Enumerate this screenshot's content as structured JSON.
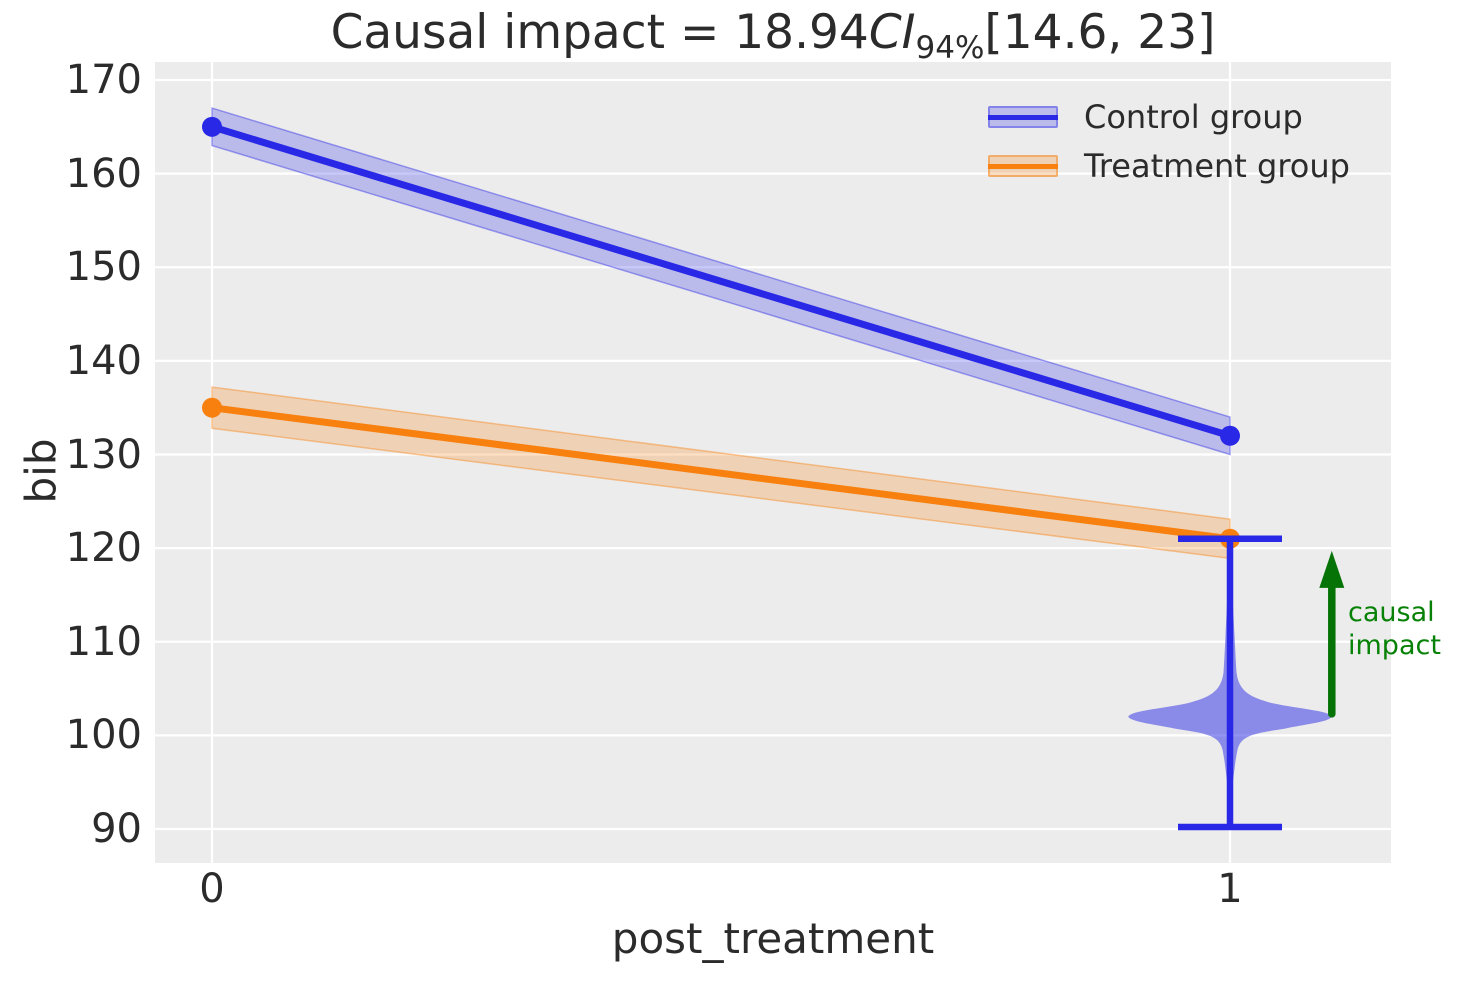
{
  "figure": {
    "title": {
      "prefix": "Causal impact = 18.94",
      "ci_label": "CI",
      "ci_subscript": "94%",
      "interval": "[14.6, 23]"
    }
  },
  "axes": {
    "x_label": "post_treatment",
    "y_label": "bib",
    "x_tick_labels": [
      "0",
      "1"
    ],
    "y_tick_labels": [
      "90",
      "100",
      "110",
      "120",
      "130",
      "140",
      "150",
      "160",
      "170"
    ]
  },
  "legend": {
    "items": [
      {
        "label": "Control group",
        "color": "#2828e6"
      },
      {
        "label": "Treatment group",
        "color": "#f7800f"
      }
    ]
  },
  "annotation": {
    "line1": "causal",
    "line2": "impact",
    "color": "#078207"
  },
  "colors": {
    "plot_background": "#ececec",
    "grid": "#ffffff",
    "control_blue": "#2828e6",
    "treatment_orange": "#f7800f",
    "violin_blue": "rgba(40,40,230,0.5)",
    "arrow_green": "#067306",
    "text": "#2b2b2b"
  },
  "chart_data": {
    "type": "line",
    "title": "Causal impact = 18.94 CI 94% [14.6, 23]",
    "xlabel": "post_treatment",
    "ylabel": "bib",
    "x": [
      0,
      1
    ],
    "series": [
      {
        "name": "Control group",
        "color": "#2828e6",
        "values": [
          165,
          132
        ],
        "ci_lower": [
          163.0,
          130.0
        ],
        "ci_upper": [
          167.0,
          134.0
        ]
      },
      {
        "name": "Treatment group",
        "color": "#f7800f",
        "values": [
          135,
          121
        ],
        "ci_lower": [
          132.8,
          118.9
        ],
        "ci_upper": [
          137.2,
          123.1
        ]
      }
    ],
    "causal_impact": {
      "mean": 18.94,
      "ci_level_pct": 94,
      "ci": [
        14.6,
        23
      ]
    },
    "violin": {
      "x": 1,
      "color": "#2828e6",
      "whisker_low": 90,
      "whisker_high": 121,
      "density_peak_y": 102,
      "spike_top": 119.6,
      "tail_bottom": 92.3,
      "max_halfwidth_x": 0.1
    },
    "arrow": {
      "x": 1.1,
      "y_from": 102.3,
      "y_to": 119.7,
      "label": "causal impact",
      "color": "#067306"
    },
    "xlim": [
      -0.056,
      1.158
    ],
    "ylim": [
      86.4,
      172
    ],
    "x_ticks": [
      0,
      1
    ],
    "y_ticks": [
      90,
      100,
      110,
      120,
      130,
      140,
      150,
      160,
      170
    ],
    "grid": true,
    "legend_position": "upper right"
  }
}
